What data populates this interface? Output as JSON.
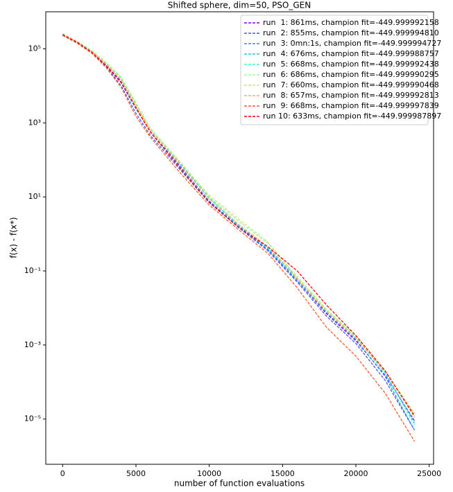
{
  "chart_data": {
    "type": "line",
    "title": "Shifted sphere, dim=50, PSO_GEN",
    "xlabel": "number of function evaluations",
    "ylabel": "f(x) - f(x*)",
    "log_y": true,
    "legend": "upper right",
    "line_style": "dashed",
    "xlim": [
      -1150,
      25300
    ],
    "ylim": [
      6e-07,
      1000000
    ],
    "xticks": [
      0,
      5000,
      10000,
      15000,
      20000,
      25000
    ],
    "yticks": [
      {
        "value": 100000,
        "label": "10⁵"
      },
      {
        "value": 1000,
        "label": "10³"
      },
      {
        "value": 10,
        "label": "10¹"
      },
      {
        "value": 0.1,
        "label": "10⁻¹"
      },
      {
        "value": 0.001,
        "label": "10⁻³"
      },
      {
        "value": 1e-05,
        "label": "10⁻⁵"
      }
    ],
    "x": [
      0,
      1000,
      2000,
      3000,
      4000,
      5000,
      6000,
      8000,
      10000,
      12000,
      14000,
      16000,
      18000,
      20000,
      22000,
      24000
    ],
    "series": [
      {
        "name": "run  1: 861ms, champion fit=-449.999992158",
        "color": "#8000ff",
        "values": [
          240000,
          150000,
          82000,
          36000,
          13000,
          2600,
          580,
          68,
          7.5,
          1.5,
          0.38,
          0.055,
          0.007,
          0.0013,
          0.00015,
          9e-06
        ]
      },
      {
        "name": "run  2: 855ms, champion fit=-449.999994810",
        "color": "#4c50fc",
        "values": [
          230000,
          145000,
          78000,
          32000,
          10000,
          1800,
          450,
          55,
          7,
          1.5,
          0.35,
          0.05,
          0.006,
          0.0011,
          0.00011,
          5e-06
        ]
      },
      {
        "name": "run  3: 0mn:1s, champion fit=-449.999994727",
        "color": "#1996f3",
        "values": [
          250000,
          150000,
          80000,
          34000,
          12000,
          2400,
          560,
          65,
          7.8,
          1.6,
          0.38,
          0.055,
          0.0075,
          0.0014,
          0.00014,
          5e-06
        ]
      },
      {
        "name": "run  4: 676ms, champion fit=-449.999988757",
        "color": "#1ccadd",
        "values": [
          260000,
          155000,
          85000,
          38000,
          15000,
          3000,
          650,
          80,
          9,
          1.7,
          0.42,
          0.06,
          0.0085,
          0.0016,
          0.00018,
          8e-06
        ]
      },
      {
        "name": "run  5: 668ms, champion fit=-449.999992438",
        "color": "#4cf2ce",
        "values": [
          250000,
          155000,
          88000,
          40000,
          16000,
          3200,
          680,
          85,
          9.5,
          1.8,
          0.45,
          0.065,
          0.009,
          0.0016,
          0.00017,
          7e-06
        ]
      },
      {
        "name": "run  6: 686ms, champion fit=-449.999990295",
        "color": "#9cfa9c",
        "values": [
          260000,
          160000,
          90000,
          42000,
          17000,
          3500,
          700,
          90,
          10,
          2.2,
          0.55,
          0.07,
          0.009,
          0.0018,
          0.0002,
          1.3e-05
        ]
      },
      {
        "name": "run  7: 660ms, champion fit=-449.999990468",
        "color": "#d4e07a",
        "values": [
          250000,
          155000,
          86000,
          40000,
          15000,
          3000,
          650,
          85,
          11,
          2.5,
          0.6,
          0.065,
          0.0085,
          0.0017,
          0.0002,
          1.1e-05
        ]
      },
      {
        "name": "run  8: 657ms, champion fit=-449.999992813",
        "color": "#ffac5e",
        "values": [
          245000,
          150000,
          82000,
          37000,
          14000,
          2800,
          600,
          75,
          9,
          1.8,
          0.45,
          0.06,
          0.008,
          0.0015,
          0.00019,
          1.4e-05
        ]
      },
      {
        "name": "run  9: 668ms, champion fit=-449.999997839",
        "color": "#ff5a30",
        "values": [
          230000,
          140000,
          75000,
          30000,
          9000,
          1500,
          400,
          45,
          6,
          1.3,
          0.3,
          0.035,
          0.003,
          0.0005,
          5e-05,
          2.5e-06
        ]
      },
      {
        "name": "run 10: 633ms, champion fit=-449.999987897",
        "color": "#ff0000",
        "values": [
          240000,
          150000,
          80000,
          34000,
          12000,
          2500,
          550,
          60,
          7,
          1.5,
          0.45,
          0.1,
          0.012,
          0.0018,
          0.0002,
          1.2e-05
        ]
      }
    ]
  }
}
